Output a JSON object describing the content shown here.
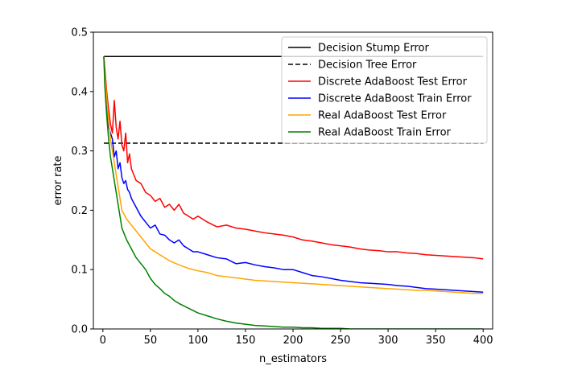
{
  "chart_data": {
    "type": "line",
    "title": "",
    "xlabel": "n_estimators",
    "ylabel": "error rate",
    "xlim": [
      -10,
      410
    ],
    "ylim": [
      0,
      0.5
    ],
    "xticks": [
      0,
      50,
      100,
      150,
      200,
      250,
      300,
      350,
      400
    ],
    "yticks": [
      0.0,
      0.1,
      0.2,
      0.3,
      0.4,
      0.5
    ],
    "grid": false,
    "legend_position": "top-right",
    "series": [
      {
        "name": "Decision Stump Error",
        "color": "#000000",
        "style": "solid",
        "x": [
          1,
          400
        ],
        "y": [
          0.459,
          0.459
        ]
      },
      {
        "name": "Decision Tree Error",
        "color": "#000000",
        "style": "dashed",
        "x": [
          1,
          400
        ],
        "y": [
          0.313,
          0.313
        ]
      },
      {
        "name": "Discrete AdaBoost Test Error",
        "color": "#ff0000",
        "style": "solid",
        "x": [
          1,
          2,
          4,
          6,
          8,
          10,
          12,
          14,
          16,
          18,
          20,
          22,
          24,
          26,
          28,
          30,
          35,
          40,
          45,
          50,
          55,
          60,
          65,
          70,
          75,
          80,
          85,
          90,
          95,
          100,
          110,
          120,
          130,
          140,
          150,
          160,
          170,
          180,
          190,
          200,
          210,
          220,
          230,
          240,
          250,
          260,
          270,
          280,
          290,
          300,
          310,
          320,
          330,
          340,
          350,
          360,
          370,
          380,
          390,
          400
        ],
        "y": [
          0.459,
          0.44,
          0.4,
          0.37,
          0.345,
          0.33,
          0.385,
          0.34,
          0.32,
          0.35,
          0.31,
          0.3,
          0.33,
          0.28,
          0.295,
          0.27,
          0.25,
          0.245,
          0.23,
          0.225,
          0.215,
          0.22,
          0.205,
          0.21,
          0.2,
          0.21,
          0.195,
          0.19,
          0.185,
          0.19,
          0.18,
          0.172,
          0.175,
          0.17,
          0.168,
          0.165,
          0.162,
          0.16,
          0.158,
          0.155,
          0.15,
          0.148,
          0.145,
          0.142,
          0.14,
          0.138,
          0.135,
          0.133,
          0.132,
          0.13,
          0.13,
          0.128,
          0.127,
          0.125,
          0.124,
          0.123,
          0.122,
          0.121,
          0.12,
          0.118
        ]
      },
      {
        "name": "Discrete AdaBoost Train Error",
        "color": "#0000ff",
        "style": "solid",
        "x": [
          1,
          2,
          4,
          6,
          8,
          10,
          12,
          14,
          16,
          18,
          20,
          22,
          24,
          26,
          28,
          30,
          35,
          40,
          45,
          50,
          55,
          60,
          65,
          70,
          75,
          80,
          85,
          90,
          95,
          100,
          110,
          120,
          130,
          140,
          150,
          160,
          170,
          180,
          190,
          200,
          210,
          220,
          230,
          240,
          250,
          260,
          270,
          280,
          290,
          300,
          310,
          320,
          330,
          340,
          350,
          360,
          370,
          380,
          390,
          400
        ],
        "y": [
          0.459,
          0.43,
          0.38,
          0.34,
          0.33,
          0.32,
          0.29,
          0.3,
          0.27,
          0.28,
          0.255,
          0.245,
          0.25,
          0.235,
          0.23,
          0.22,
          0.205,
          0.19,
          0.18,
          0.17,
          0.175,
          0.16,
          0.158,
          0.15,
          0.145,
          0.15,
          0.14,
          0.135,
          0.13,
          0.13,
          0.125,
          0.12,
          0.118,
          0.11,
          0.112,
          0.108,
          0.105,
          0.103,
          0.1,
          0.1,
          0.095,
          0.09,
          0.088,
          0.085,
          0.082,
          0.08,
          0.078,
          0.077,
          0.076,
          0.075,
          0.073,
          0.072,
          0.07,
          0.068,
          0.067,
          0.066,
          0.065,
          0.064,
          0.063,
          0.062
        ]
      },
      {
        "name": "Real AdaBoost Test Error",
        "color": "#ffa500",
        "style": "solid",
        "x": [
          1,
          2,
          4,
          6,
          8,
          10,
          12,
          14,
          16,
          18,
          20,
          25,
          30,
          35,
          40,
          45,
          50,
          55,
          60,
          70,
          80,
          90,
          100,
          110,
          120,
          130,
          140,
          150,
          160,
          170,
          180,
          190,
          200,
          210,
          220,
          230,
          240,
          250,
          260,
          270,
          280,
          290,
          300,
          310,
          320,
          330,
          340,
          350,
          360,
          370,
          380,
          390,
          400
        ],
        "y": [
          0.459,
          0.43,
          0.39,
          0.35,
          0.32,
          0.3,
          0.28,
          0.26,
          0.24,
          0.22,
          0.2,
          0.185,
          0.175,
          0.165,
          0.155,
          0.145,
          0.135,
          0.13,
          0.125,
          0.115,
          0.108,
          0.102,
          0.098,
          0.095,
          0.09,
          0.088,
          0.086,
          0.084,
          0.082,
          0.081,
          0.08,
          0.079,
          0.078,
          0.077,
          0.076,
          0.075,
          0.074,
          0.073,
          0.072,
          0.071,
          0.07,
          0.069,
          0.068,
          0.067,
          0.066,
          0.065,
          0.065,
          0.064,
          0.063,
          0.062,
          0.061,
          0.06,
          0.06
        ]
      },
      {
        "name": "Real AdaBoost Train Error",
        "color": "#008000",
        "style": "solid",
        "x": [
          1,
          2,
          4,
          6,
          8,
          10,
          12,
          14,
          16,
          18,
          20,
          25,
          30,
          35,
          40,
          45,
          50,
          55,
          60,
          65,
          70,
          75,
          80,
          90,
          100,
          110,
          120,
          130,
          140,
          150,
          160,
          170,
          180,
          190,
          200,
          210,
          220,
          230,
          240,
          250,
          260,
          280,
          300,
          320,
          340,
          360,
          380,
          400
        ],
        "y": [
          0.459,
          0.41,
          0.36,
          0.32,
          0.29,
          0.27,
          0.25,
          0.23,
          0.21,
          0.19,
          0.17,
          0.15,
          0.135,
          0.12,
          0.11,
          0.1,
          0.085,
          0.075,
          0.068,
          0.06,
          0.055,
          0.048,
          0.043,
          0.035,
          0.027,
          0.022,
          0.017,
          0.013,
          0.01,
          0.008,
          0.006,
          0.005,
          0.004,
          0.003,
          0.003,
          0.002,
          0.002,
          0.001,
          0.001,
          0.001,
          0.0,
          0.0,
          0.0,
          0.0,
          0.0,
          0.0,
          0.0,
          0.0
        ]
      }
    ]
  }
}
